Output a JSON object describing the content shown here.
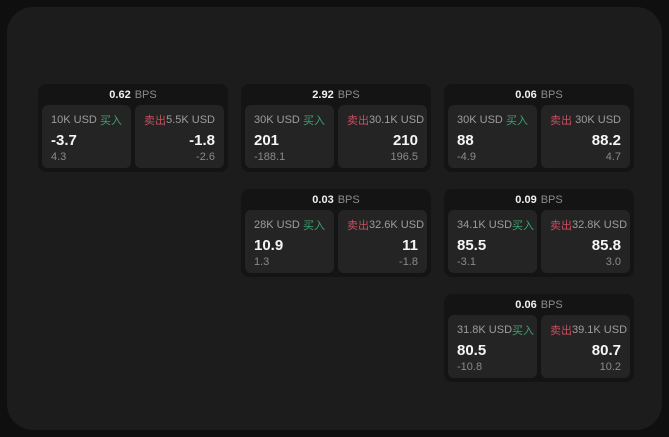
{
  "labels": {
    "bps": "BPS",
    "buy": "买入",
    "sell": "卖出"
  },
  "colors": {
    "buy_green": "#3fa16d",
    "sell_red": "#c74f61",
    "surface_bg": "#1c1c1c",
    "card_bg": "#141414",
    "panel_bg": "#242424"
  },
  "cards": [
    {
      "bps": "0.62",
      "row": 1,
      "col": 1,
      "buy": {
        "volume": "10K USD",
        "value": "-3.7",
        "delta": "4.3"
      },
      "sell": {
        "volume": "5.5K USD",
        "value": "-1.8",
        "delta": "-2.6"
      }
    },
    {
      "bps": "2.92",
      "row": 1,
      "col": 2,
      "buy": {
        "volume": "30K USD",
        "value": "201",
        "delta": "-188.1"
      },
      "sell": {
        "volume": "30.1K USD",
        "value": "210",
        "delta": "196.5"
      }
    },
    {
      "bps": "0.06",
      "row": 1,
      "col": 3,
      "buy": {
        "volume": "30K USD",
        "value": "88",
        "delta": "-4.9"
      },
      "sell": {
        "volume": "30K USD",
        "value": "88.2",
        "delta": "4.7"
      }
    },
    {
      "bps": "0.03",
      "row": 2,
      "col": 2,
      "buy": {
        "volume": "28K USD",
        "value": "10.9",
        "delta": "1.3"
      },
      "sell": {
        "volume": "32.6K USD",
        "value": "11",
        "delta": "-1.8"
      }
    },
    {
      "bps": "0.09",
      "row": 2,
      "col": 3,
      "buy": {
        "volume": "34.1K USD",
        "value": "85.5",
        "delta": "-3.1"
      },
      "sell": {
        "volume": "32.8K USD",
        "value": "85.8",
        "delta": "3.0"
      }
    },
    {
      "bps": "0.06",
      "row": 3,
      "col": 3,
      "buy": {
        "volume": "31.8K USD",
        "value": "80.5",
        "delta": "-10.8"
      },
      "sell": {
        "volume": "39.1K USD",
        "value": "80.7",
        "delta": "10.2"
      }
    }
  ]
}
